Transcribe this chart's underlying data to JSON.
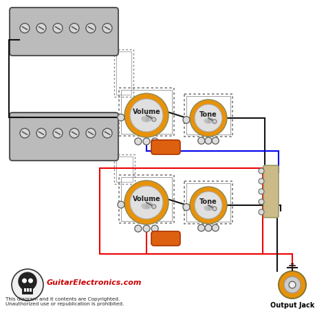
{
  "bg_color": "#ffffff",
  "pickup_color": "#bbbbbb",
  "pickup_edge": "#555555",
  "pot_body_color": "#e8920a",
  "pot_face_color": "#e0e0e0",
  "pot_shadow_color": "#aaaaaa",
  "wire_black": "#111111",
  "wire_blue": "#0000ee",
  "wire_red": "#ee0000",
  "cap_color": "#dd6010",
  "switch_color": "#ccbb88",
  "switch_edge": "#999966",
  "jack_ring_color": "#e8920a",
  "text_color": "#000000",
  "logo_red": "#cc0000",
  "copyright_text": "This diagram and it contents are Copyrighted.\nUnauthorized use or republication is prohibited.",
  "logo_text": "GuitarElectronics.com",
  "output_jack_text": "Output Jack",
  "dotted_color": "#888888",
  "lug_color": "#dddddd",
  "lug_edge": "#666666"
}
